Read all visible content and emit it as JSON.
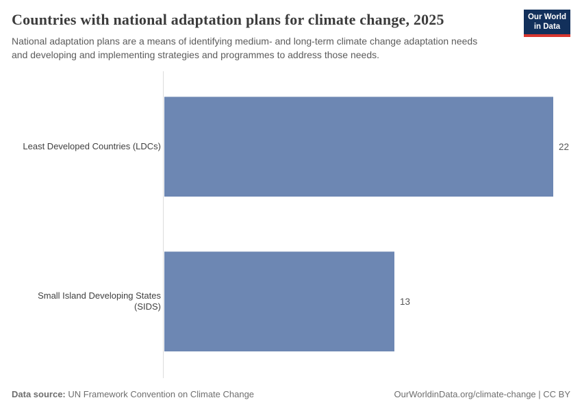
{
  "header": {
    "title": "Countries with national adaptation plans for climate change, 2025",
    "subtitle_lines": [
      "National adaptation plans are a means of identifying medium- and long-term climate change adaptation needs",
      "and developing and implementing strategies and programmes to address those needs."
    ],
    "logo": {
      "line1": "Our World",
      "line2": "in Data"
    }
  },
  "chart_data": {
    "type": "bar",
    "orientation": "horizontal",
    "title": "Countries with national adaptation plans for climate change, 2025",
    "categories": [
      "Least Developed Countries (LDCs)",
      "Small Island Developing States (SIDS)"
    ],
    "values": [
      22,
      13
    ],
    "xlabel": "",
    "ylabel": "",
    "xlim": [
      0,
      22
    ],
    "grid": false,
    "legend": false,
    "value_labels": [
      "22",
      "13"
    ]
  },
  "footer": {
    "source_label": "Data source:",
    "source_text": " UN Framework Convention on Climate Change",
    "right_text": "OurWorldinData.org/climate-change | CC BY"
  },
  "colors": {
    "bar": "#6d87b3",
    "bar_edge": "#9fb0cc",
    "logo_navy": "#12305b",
    "logo_red": "#d8362f",
    "axis_line": "#dcdcdc",
    "title_text": "#3c3c3c",
    "subtitle_text": "#5b5b5b",
    "footer_text": "#6e6e6e"
  }
}
